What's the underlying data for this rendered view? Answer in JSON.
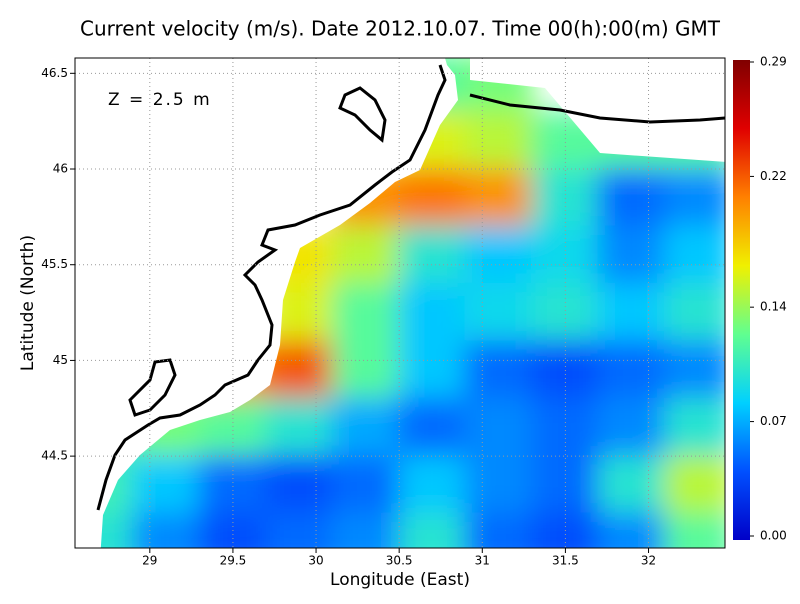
{
  "chart_data": {
    "type": "heatmap",
    "title": "Current velocity (m/s). Date 2012.10.07. Time 00(h):00(m) GMT",
    "annotation": "Z = 2.5 m",
    "x_label": "Longitude (East)",
    "y_label": "Latitude (North)",
    "xlim": [
      28.55,
      32.46
    ],
    "ylim": [
      44.02,
      46.58
    ],
    "xticks": [
      29,
      29.5,
      30,
      30.5,
      31,
      31.5,
      32
    ],
    "yticks": [
      44.5,
      45,
      45.5,
      46,
      46.5
    ],
    "grid": true,
    "grid_lon": [
      28.7,
      29.1,
      29.5,
      29.9,
      30.3,
      30.7,
      31.1,
      31.5,
      31.9,
      32.3
    ],
    "grid_lat": [
      46.45,
      46.15,
      45.85,
      45.55,
      45.25,
      44.95,
      44.65,
      44.35,
      44.05
    ],
    "speed": [
      [
        null,
        null,
        null,
        null,
        null,
        0.12,
        0.13,
        null,
        null,
        null
      ],
      [
        null,
        null,
        null,
        null,
        null,
        0.16,
        0.15,
        0.12,
        0.12,
        0.12
      ],
      [
        null,
        null,
        null,
        null,
        0.2,
        0.21,
        0.2,
        0.1,
        0.05,
        0.06
      ],
      [
        null,
        null,
        null,
        0.17,
        0.15,
        0.1,
        0.08,
        0.09,
        0.06,
        0.08
      ],
      [
        null,
        null,
        null,
        0.16,
        0.12,
        0.08,
        0.09,
        0.1,
        0.08,
        0.1
      ],
      [
        null,
        null,
        0.2,
        0.22,
        0.12,
        0.08,
        0.05,
        0.04,
        0.05,
        0.06
      ],
      [
        0.1,
        0.13,
        0.12,
        0.1,
        0.07,
        0.05,
        0.06,
        0.05,
        0.06,
        0.1
      ],
      [
        0.11,
        0.08,
        0.05,
        0.04,
        0.05,
        0.08,
        0.06,
        0.05,
        0.1,
        0.15
      ],
      [
        0.1,
        0.06,
        0.04,
        0.05,
        0.06,
        0.1,
        0.05,
        0.04,
        0.06,
        0.12
      ]
    ],
    "clim": [
      0,
      0.29
    ],
    "cticks": [
      {
        "value": 0,
        "label": "0.00"
      },
      0.07,
      0.14,
      0.22,
      0.29
    ],
    "colormap": [
      "#0000c8",
      "#0050ff",
      "#00d0ff",
      "#60ff90",
      "#f0f000",
      "#ff8000",
      "#e00000",
      "#800000"
    ]
  }
}
